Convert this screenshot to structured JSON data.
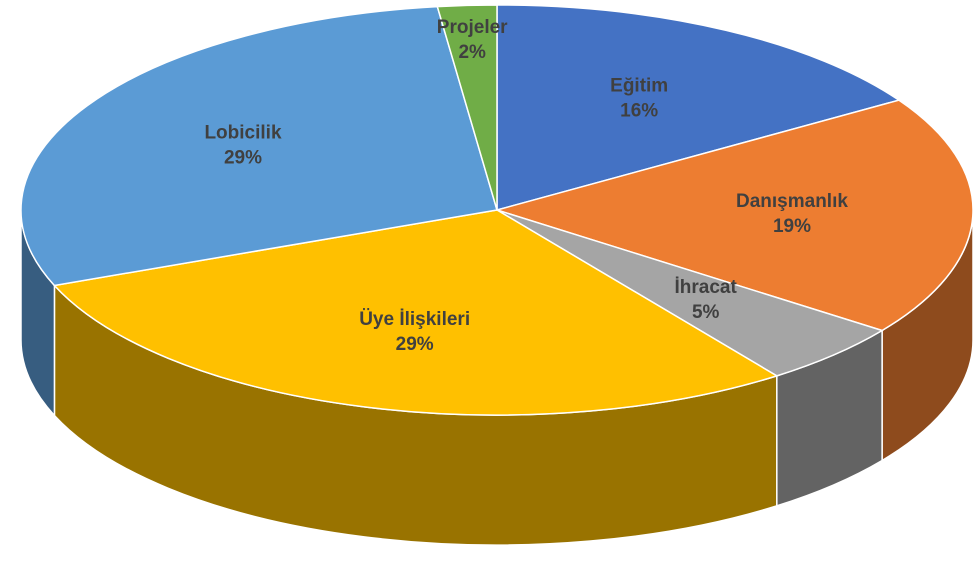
{
  "chart_data": {
    "type": "pie3d",
    "categories": [
      "Eğitim",
      "Danışmanlık",
      "İhracat",
      "Üye İlişkileri",
      "Lobicilik",
      "Projeler"
    ],
    "values": [
      16,
      19,
      5,
      29,
      29,
      2
    ],
    "value_labels": [
      "16%",
      "19%",
      "5%",
      "29%",
      "29%",
      "2%"
    ],
    "colors": [
      "#4472c4",
      "#ed7d31",
      "#a5a5a5",
      "#ffc000",
      "#5b9bd5",
      "#70ad47"
    ]
  }
}
